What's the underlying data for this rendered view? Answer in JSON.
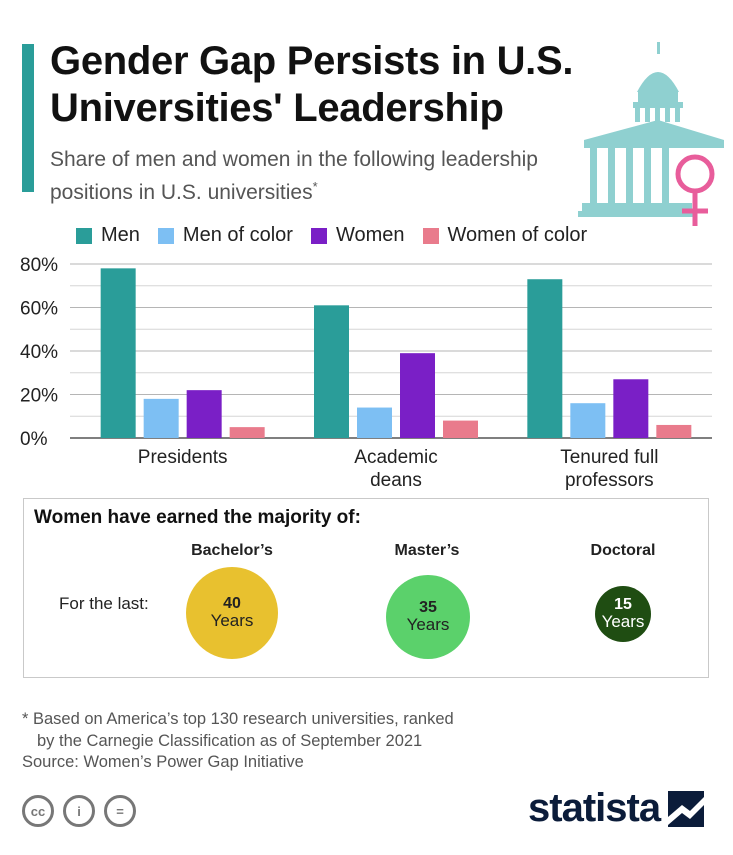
{
  "header": {
    "title": "Gender Gap Persists in U.S. Universities' Leadership",
    "subtitle": "Share of men and women in the following leadership positions in U.S. universities",
    "subtitle_marker": "*",
    "accent_color": "#2a9d99"
  },
  "chart_data": {
    "type": "bar",
    "title": "",
    "xlabel": "",
    "ylabel": "",
    "categories": [
      {
        "label": "Presidents",
        "lines": [
          "Presidents"
        ]
      },
      {
        "label": "Academic deans",
        "lines": [
          "Academic",
          "deans"
        ]
      },
      {
        "label": "Tenured full professors",
        "lines": [
          "Tenured full",
          "professors"
        ]
      }
    ],
    "series": [
      {
        "name": "Men",
        "color": "#2a9d99",
        "values": [
          78,
          61,
          73
        ]
      },
      {
        "name": "Men of color",
        "color": "#7dbff3",
        "values": [
          18,
          14,
          16
        ]
      },
      {
        "name": "Women",
        "color": "#7a1fc6",
        "values": [
          22,
          39,
          27
        ]
      },
      {
        "name": "Women of color",
        "color": "#e97b8c",
        "values": [
          5,
          8,
          6
        ]
      }
    ],
    "ylim": [
      0,
      80
    ],
    "yticks": [
      0,
      20,
      40,
      60,
      80
    ],
    "ytick_labels": [
      "0%",
      "20%",
      "40%",
      "60%",
      "80%"
    ],
    "grid": true,
    "legend_position": "top"
  },
  "panel": {
    "title": "Women have earned the majority of:",
    "row_label": "For the last:",
    "degrees": [
      {
        "name": "Bachelor’s",
        "years": "40",
        "unit": "Years",
        "color": "#e8c12f",
        "text_color": "#222222"
      },
      {
        "name": "Master’s",
        "years": "35",
        "unit": "Years",
        "color": "#5bd16b",
        "text_color": "#222222"
      },
      {
        "name": "Doctoral",
        "years": "15",
        "unit": "Years",
        "color": "#1f4d12",
        "text_color": "#ffffff"
      }
    ]
  },
  "footer": {
    "footnote_line1": "* Based on America’s top 130 research universities, ranked",
    "footnote_line2": "by the Carnegie Classification as of September 2021",
    "source": "Source: Women’s Power Gap Initiative",
    "cc_labels": [
      "cc",
      "i",
      "="
    ],
    "brand": "statista"
  }
}
